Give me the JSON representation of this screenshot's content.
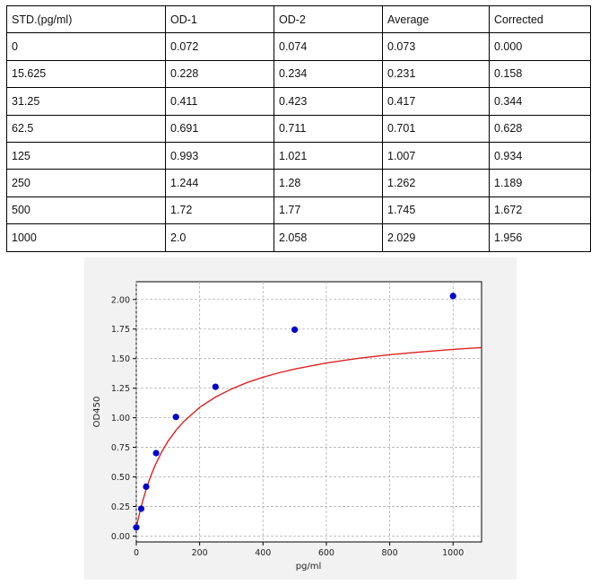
{
  "table": {
    "headers": [
      "STD.(pg/ml)",
      "OD-1",
      "OD-2",
      "Average",
      "Corrected"
    ],
    "rows": [
      [
        "0",
        "0.072",
        "0.074",
        "0.073",
        "0.000"
      ],
      [
        "15.625",
        "0.228",
        "0.234",
        "0.231",
        "0.158"
      ],
      [
        "31.25",
        "0.411",
        "0.423",
        "0.417",
        "0.344"
      ],
      [
        "62.5",
        "0.691",
        "0.711",
        "0.701",
        "0.628"
      ],
      [
        "125",
        "0.993",
        "1.021",
        "1.007",
        "0.934"
      ],
      [
        "250",
        "1.244",
        "1.28",
        "1.262",
        "1.189"
      ],
      [
        "500",
        "1.72",
        "1.77",
        "1.745",
        "1.672"
      ],
      [
        "1000",
        "2.0",
        "2.058",
        "2.029",
        "1.956"
      ]
    ]
  },
  "chart_data": {
    "type": "scatter",
    "title": "",
    "xlabel": "pg/ml",
    "ylabel": "OD450",
    "xlim": [
      0,
      1090
    ],
    "ylim": [
      -0.05,
      2.15
    ],
    "x_ticks": [
      0,
      200,
      400,
      600,
      800,
      1000
    ],
    "x_tick_labels": [
      "0",
      "200",
      "400",
      "600",
      "800",
      "1000"
    ],
    "y_ticks": [
      0,
      0.25,
      0.5,
      0.75,
      1.0,
      1.25,
      1.5,
      1.75,
      2.0
    ],
    "y_tick_labels": [
      "0.00",
      "0.25",
      "0.50",
      "0.75",
      "1.00",
      "1.25",
      "1.50",
      "1.75",
      "2.00"
    ],
    "grid": true,
    "points": {
      "x": [
        0,
        15.625,
        31.25,
        62.5,
        125,
        250,
        500,
        1000
      ],
      "y": [
        0.073,
        0.231,
        0.417,
        0.701,
        1.007,
        1.262,
        1.745,
        2.029
      ],
      "color": "#0000cc"
    },
    "fit_curve": {
      "x": [
        0,
        5,
        10,
        15,
        20,
        30,
        40,
        50,
        60,
        80,
        100,
        125,
        150,
        200,
        250,
        300,
        350,
        400,
        450,
        500,
        600,
        700,
        800,
        900,
        1000,
        1090
      ],
      "y": [
        0.07,
        0.132,
        0.19,
        0.244,
        0.294,
        0.385,
        0.465,
        0.537,
        0.601,
        0.711,
        0.801,
        0.893,
        0.969,
        1.087,
        1.175,
        1.243,
        1.298,
        1.343,
        1.38,
        1.412,
        1.463,
        1.502,
        1.533,
        1.557,
        1.578,
        1.593
      ],
      "color": "#dd2222"
    }
  }
}
